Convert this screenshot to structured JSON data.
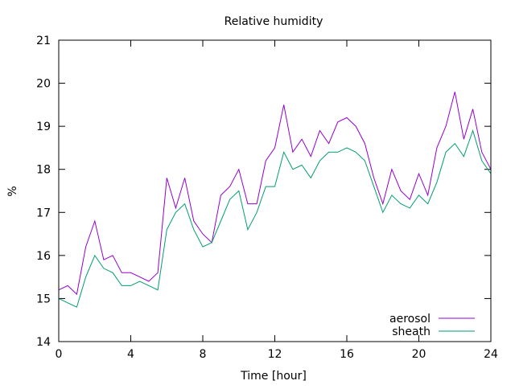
{
  "chart_data": {
    "type": "line",
    "title": "Relative humidity",
    "xlabel": "Time [hour]",
    "ylabel": "%",
    "xlim": [
      0,
      24
    ],
    "ylim": [
      14,
      21
    ],
    "xticks": [
      0,
      4,
      8,
      12,
      16,
      20,
      24
    ],
    "yticks": [
      14,
      15,
      16,
      17,
      18,
      19,
      20,
      21
    ],
    "xtick_labels": [
      "0",
      "4",
      "8",
      "12",
      "16",
      "20",
      "24"
    ],
    "ytick_labels": [
      "14",
      "15",
      "16",
      "17",
      "18",
      "19",
      "20",
      "21"
    ],
    "grid": false,
    "legend_position": "bottom-right",
    "x": [
      0,
      0.5,
      1,
      1.5,
      2,
      2.5,
      3,
      3.5,
      4,
      4.5,
      5,
      5.5,
      6,
      6.5,
      7,
      7.5,
      8,
      8.5,
      9,
      9.5,
      10,
      10.5,
      11,
      11.5,
      12,
      12.5,
      13,
      13.5,
      14,
      14.5,
      15,
      15.5,
      16,
      16.5,
      17,
      17.5,
      18,
      18.5,
      19,
      19.5,
      20,
      20.5,
      21,
      21.5,
      22,
      22.5,
      23,
      23.5,
      24
    ],
    "series": [
      {
        "name": "aerosol",
        "color": "#9400d3",
        "values": [
          15.2,
          15.3,
          15.1,
          16.2,
          16.8,
          15.9,
          16.0,
          15.6,
          15.6,
          15.5,
          15.4,
          15.6,
          17.8,
          17.1,
          17.8,
          16.8,
          16.5,
          16.3,
          17.4,
          17.6,
          18.0,
          17.2,
          17.2,
          18.2,
          18.5,
          19.5,
          18.4,
          18.7,
          18.3,
          18.9,
          18.6,
          19.1,
          19.2,
          19.0,
          18.6,
          17.8,
          17.2,
          18.0,
          17.5,
          17.3,
          17.9,
          17.4,
          18.5,
          19.0,
          19.8,
          18.7,
          19.4,
          18.4,
          18.0
        ]
      },
      {
        "name": "sheath",
        "color": "#009e73",
        "values": [
          15.0,
          14.9,
          14.8,
          15.5,
          16.0,
          15.7,
          15.6,
          15.3,
          15.3,
          15.4,
          15.3,
          15.2,
          16.6,
          17.0,
          17.2,
          16.6,
          16.2,
          16.3,
          16.8,
          17.3,
          17.5,
          16.6,
          17.0,
          17.6,
          17.6,
          18.4,
          18.0,
          18.1,
          17.8,
          18.2,
          18.4,
          18.4,
          18.5,
          18.4,
          18.2,
          17.6,
          17.0,
          17.4,
          17.2,
          17.1,
          17.4,
          17.2,
          17.7,
          18.4,
          18.6,
          18.3,
          18.9,
          18.2,
          17.9
        ]
      }
    ]
  }
}
